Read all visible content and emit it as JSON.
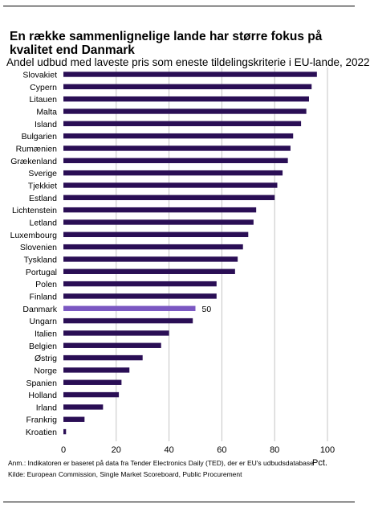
{
  "header": {
    "title": "En række sammenlignelige lande har større fokus på kvalitet end Danmark",
    "subtitle": "Andel udbud med laveste pris som eneste tildelingskriterie i EU-lande, 2022"
  },
  "footer": {
    "note": "Anm.: Indikatoren er baseret på data fra Tender Electronics Daily (TED), der er EU's udbudsdatabase",
    "source": "Kilde: European Commission, Single Market Scoreboard, Public Procurement"
  },
  "chart_data": {
    "type": "bar",
    "orientation": "horizontal",
    "categories": [
      "Slovakiet",
      "Cypern",
      "Litauen",
      "Malta",
      "Island",
      "Bulgarien",
      "Rumænien",
      "Grækenland",
      "Sverige",
      "Tjekkiet",
      "Estland",
      "Lichtenstein",
      "Letland",
      "Luxembourg",
      "Slovenien",
      "Tyskland",
      "Portugal",
      "Polen",
      "Finland",
      "Danmark",
      "Ungarn",
      "Italien",
      "Belgien",
      "Østrig",
      "Norge",
      "Spanien",
      "Holland",
      "Irland",
      "Frankrig",
      "Kroatien"
    ],
    "values": [
      96,
      94,
      93,
      92,
      90,
      87,
      86,
      85,
      83,
      81,
      80,
      73,
      72,
      70,
      68,
      66,
      65,
      58,
      58,
      50,
      49,
      40,
      37,
      30,
      25,
      22,
      21,
      15,
      8,
      1
    ],
    "highlight": {
      "category": "Danmark",
      "label": "50"
    },
    "xlim": [
      0,
      100
    ],
    "xticks": [
      0,
      20,
      40,
      60,
      80,
      100
    ],
    "xlabel": "Pct.",
    "grid": "vertical",
    "colors": {
      "bar": "#2a0e55",
      "highlight": "#7b57c2",
      "grid": "#c4c4c4"
    }
  }
}
